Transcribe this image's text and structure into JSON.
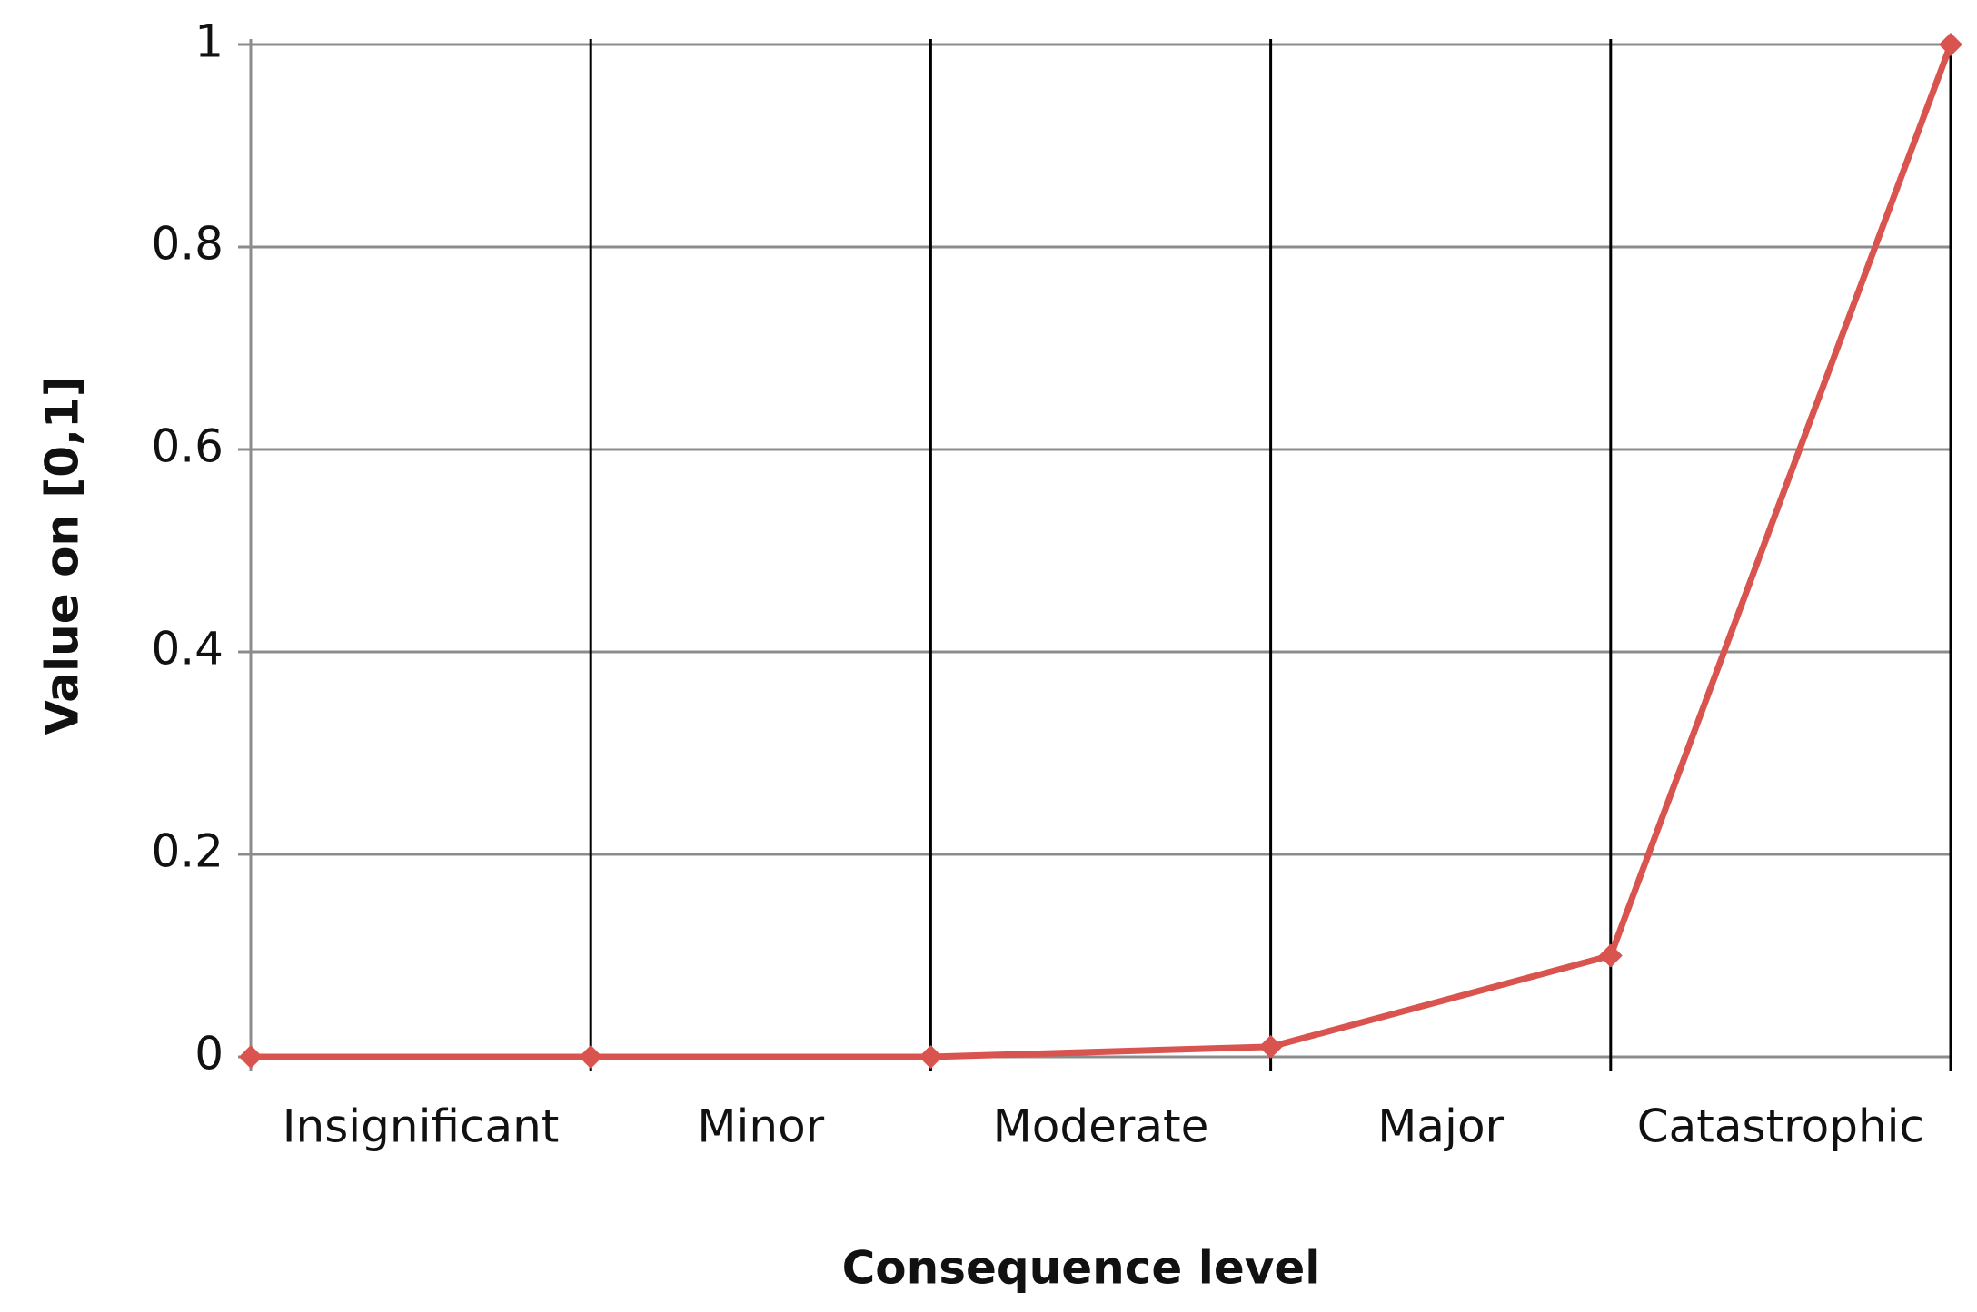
{
  "chart_data": {
    "type": "line",
    "x": [
      0,
      1,
      2,
      3,
      4,
      5
    ],
    "xlim": [
      0,
      5
    ],
    "xticks": [
      {
        "value": 0.5,
        "label": "Insignificant"
      },
      {
        "value": 1.5,
        "label": "Minor"
      },
      {
        "value": 2.5,
        "label": "Moderate"
      },
      {
        "value": 3.5,
        "label": "Major"
      },
      {
        "value": 4.5,
        "label": "Catastrophic"
      }
    ],
    "series": [
      {
        "color": "#d9534f",
        "values": [
          0,
          0,
          0,
          0.01,
          0.1,
          1
        ]
      }
    ],
    "ylim": [
      0,
      1
    ],
    "yticks": [
      0,
      0.2,
      0.4,
      0.6,
      0.8,
      1
    ],
    "xlabel": "Consequence level",
    "ylabel": "Value on [0,1]",
    "grid": true
  }
}
